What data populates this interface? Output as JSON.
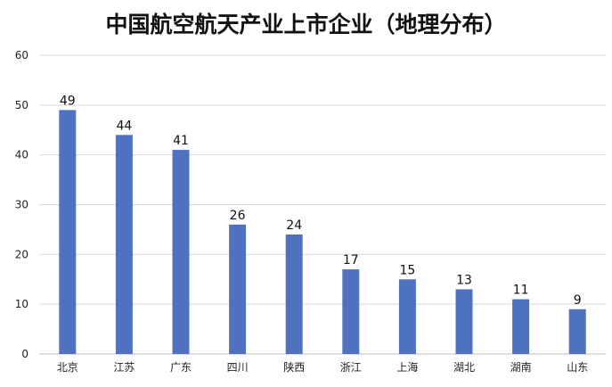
{
  "colors": {
    "bar": "#4f72c0",
    "grid": "#d9d9d9",
    "axis": "#bfbfbf"
  },
  "chart_data": {
    "type": "bar",
    "title": "中国航空航天产业上市企业（地理分布）",
    "xlabel": "",
    "ylabel": "",
    "ylim": [
      0,
      60
    ],
    "yticks": [
      0,
      10,
      20,
      30,
      40,
      50,
      60
    ],
    "grid": true,
    "legend": "none",
    "categories": [
      "北京",
      "江苏",
      "广东",
      "四川",
      "陕西",
      "浙江",
      "上海",
      "湖北",
      "湖南",
      "山东"
    ],
    "values": [
      49,
      44,
      41,
      26,
      24,
      17,
      15,
      13,
      11,
      9
    ]
  }
}
